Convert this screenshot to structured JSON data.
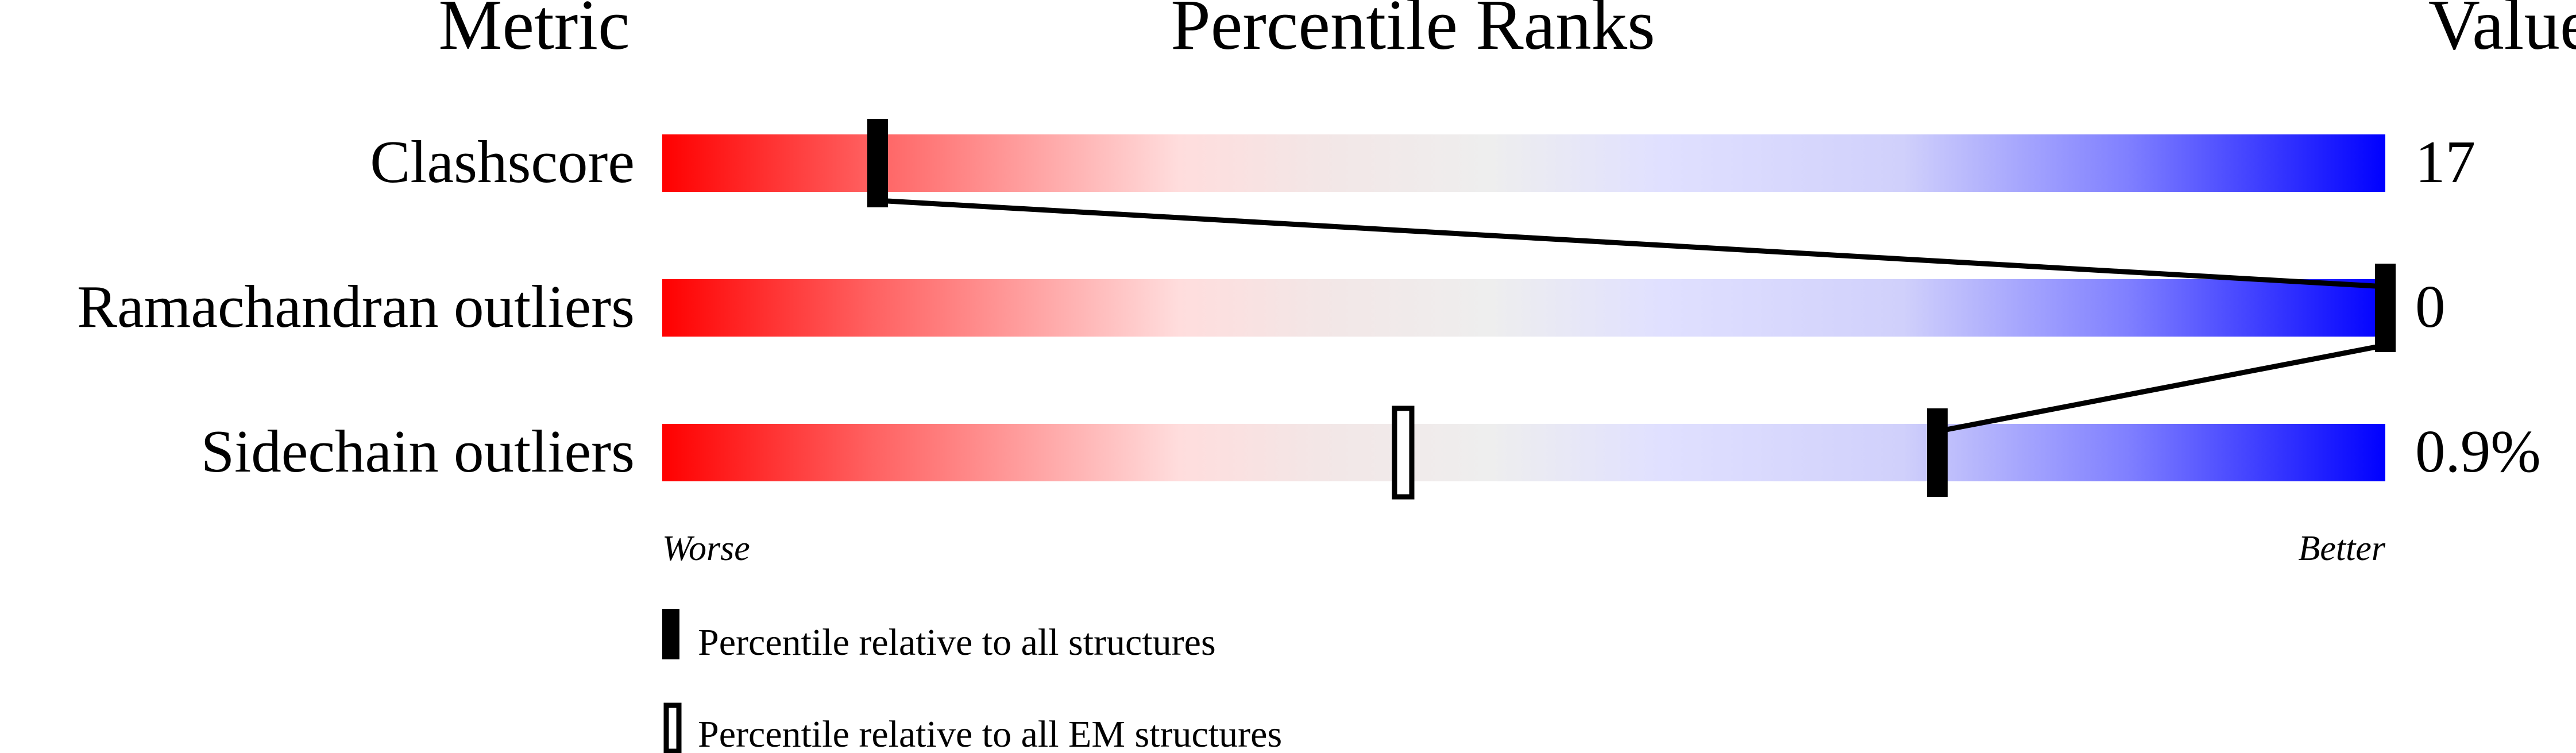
{
  "chart_data": {
    "type": "bar",
    "title": "Percentile Ranks",
    "column_headers": {
      "metric": "Metric",
      "ranks": "Percentile Ranks",
      "value": "Value"
    },
    "xlim": [
      0,
      100
    ],
    "axis_labels": {
      "left": "Worse",
      "right": "Better"
    },
    "gradient_colors": [
      "#ff0000",
      "#eeeeee",
      "#0000ff"
    ],
    "metrics": [
      {
        "name": "Clashscore",
        "value": "17",
        "percentile_all": 12.5,
        "percentile_em": null
      },
      {
        "name": "Ramachandran outliers",
        "value": "0",
        "percentile_all": 100,
        "percentile_em": null
      },
      {
        "name": "Sidechain outliers",
        "value": "0.9%",
        "percentile_all": 74,
        "percentile_em": 43
      }
    ],
    "legend": {
      "all": "Percentile relative to all structures",
      "em": "Percentile relative to all EM structures"
    }
  }
}
